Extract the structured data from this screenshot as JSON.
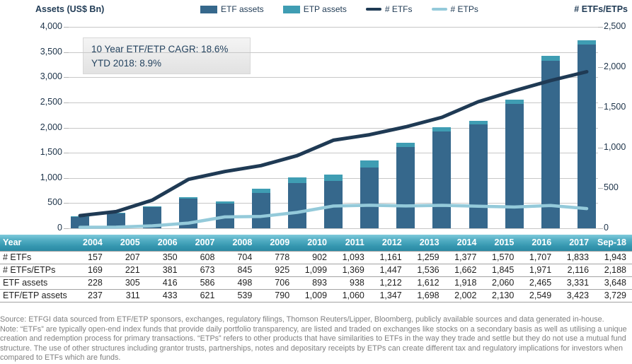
{
  "annotation": {
    "line1": "10 Year ETF/ETP CAGR: 18.6%",
    "line2": "YTD 2018: 8.9%"
  },
  "chart_data": {
    "type": "combo",
    "categories": [
      "2004",
      "2005",
      "2006",
      "2007",
      "2008",
      "2009",
      "2010",
      "2011",
      "2012",
      "2013",
      "2014",
      "2015",
      "2016",
      "2017",
      "Sep-18"
    ],
    "bar_series": [
      {
        "name": "ETF assets",
        "color": "#36688c",
        "axis": "left",
        "values": [
          228,
          305,
          416,
          586,
          498,
          706,
          893,
          938,
          1212,
          1612,
          1918,
          2060,
          2465,
          3331,
          3648
        ]
      },
      {
        "name": "ETP assets",
        "color": "#3f9db3",
        "axis": "left",
        "stacked_on": "ETF assets",
        "values": [
          9,
          6,
          17,
          35,
          41,
          84,
          116,
          122,
          135,
          86,
          84,
          70,
          84,
          92,
          81
        ]
      }
    ],
    "line_series": [
      {
        "name": "# ETFs",
        "color": "#1f3a54",
        "axis": "right",
        "values": [
          157,
          207,
          350,
          608,
          704,
          778,
          902,
          1093,
          1161,
          1259,
          1377,
          1570,
          1707,
          1833,
          1943
        ]
      },
      {
        "name": "# ETPs",
        "color": "#94cada",
        "axis": "right",
        "values": [
          12,
          14,
          31,
          65,
          141,
          147,
          197,
          276,
          286,
          277,
          285,
          275,
          264,
          283,
          245
        ]
      }
    ],
    "left_axis": {
      "label": "Assets (US$ Bn)",
      "min": 0,
      "max": 4000,
      "ticks": [
        "4,000",
        "3,500",
        "3,000",
        "2,500",
        "2,000",
        "1,500",
        "1,000",
        "500",
        "0"
      ]
    },
    "right_axis": {
      "label": "# ETFs/ETPs",
      "min": 0,
      "max": 2500,
      "ticks": [
        "2,500",
        "2,000",
        "1,500",
        "1,000",
        "500",
        "0"
      ]
    },
    "grid": true,
    "legend_position": "top"
  },
  "table": {
    "header": [
      "Year",
      "2004",
      "2005",
      "2006",
      "2007",
      "2008",
      "2009",
      "2010",
      "2011",
      "2012",
      "2013",
      "2014",
      "2015",
      "2016",
      "2017",
      "Sep-18"
    ],
    "rows": [
      {
        "label": "# ETFs",
        "values": [
          "157",
          "207",
          "350",
          "608",
          "704",
          "778",
          "902",
          "1,093",
          "1,161",
          "1,259",
          "1,377",
          "1,570",
          "1,707",
          "1,833",
          "1,943"
        ]
      },
      {
        "label": "# ETFs/ETPs",
        "values": [
          "169",
          "221",
          "381",
          "673",
          "845",
          "925",
          "1,099",
          "1,369",
          "1,447",
          "1,536",
          "1,662",
          "1,845",
          "1,971",
          "2,116",
          "2,188"
        ]
      },
      {
        "label": "ETF assets",
        "values": [
          "228",
          "305",
          "416",
          "586",
          "498",
          "706",
          "893",
          "938",
          "1,212",
          "1,612",
          "1,918",
          "2,060",
          "2,465",
          "3,331",
          "3,648"
        ]
      },
      {
        "label": "ETF/ETP assets",
        "values": [
          "237",
          "311",
          "433",
          "621",
          "539",
          "790",
          "1,009",
          "1,060",
          "1,347",
          "1,698",
          "2,002",
          "2,130",
          "2,549",
          "3,423",
          "3,729"
        ]
      }
    ]
  },
  "footer": {
    "source": "Source: ETFGI data sourced from ETF/ETP sponsors, exchanges, regulatory filings, Thomson Reuters/Lipper, Bloomberg, publicly available sources and data generated in-house.",
    "note": "Note: “ETFs” are typically open-end index funds that provide daily portfolio transparency, are listed and traded on exchanges like stocks on a secondary basis as well as utilising a unique creation and redemption process for primary transactions. “ETPs” refers to other products that have similarities to ETFs in the way they trade and settle but they do not use a mutual fund structure. The use of other structures including grantor trusts, partnerships, notes and depositary receipts by ETPs can create different tax and regulatory implications for investors when compared to ETFs which are funds."
  }
}
